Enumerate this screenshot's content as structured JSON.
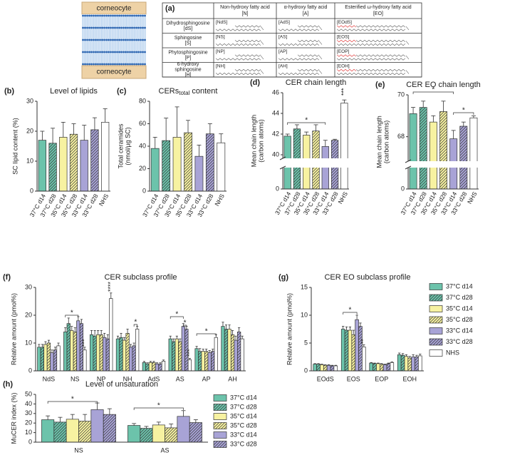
{
  "diagram": {
    "label": "(a)",
    "corneocyte": [
      "corneocyte",
      "corneocyte"
    ],
    "columns": [
      [
        "Non-hydroxy fatty acid",
        "[N]"
      ],
      [
        "α-hydroxy fatty acid",
        "[A]"
      ],
      [
        "Esterified ω-hydroxy fatty acid",
        "[EO]"
      ]
    ],
    "rows": [
      {
        "name": [
          "Dihydrosphingosine",
          "[dS]"
        ],
        "cells": [
          "[NdS]",
          "[AdS]",
          "[EOdS]"
        ]
      },
      {
        "name": [
          "Sphingosine",
          "[S]"
        ],
        "cells": [
          "[NS]",
          "[AS]",
          "[EOS]"
        ]
      },
      {
        "name": [
          "Phytosphingosine",
          "[P]"
        ],
        "cells": [
          "[NP]",
          "[AP]",
          "[EOP]"
        ]
      },
      {
        "name": [
          "6-hydroxy",
          "sphingosine",
          "[H]"
        ],
        "cells": [
          "[NH]",
          "[AH]",
          "[EOH]"
        ]
      }
    ]
  },
  "chart_data": [
    {
      "type": "bar",
      "panel": "(b)",
      "title": "Level of lipids",
      "ylabel": [
        "SC lipid content (%)"
      ],
      "categories": [
        "37°C d14",
        "37°C d28",
        "35°C d14",
        "35°C d28",
        "33°C d14",
        "33°C d28",
        "NHS"
      ],
      "values": [
        17,
        16,
        18,
        19,
        17,
        20.5,
        23
      ],
      "errors": [
        3,
        5,
        5,
        3.5,
        5,
        4,
        4.5
      ],
      "colors": [
        "#6cc3ab",
        "#6cc3ab",
        "#f7f2a1",
        "#f7f2a1",
        "#a8a3d6",
        "#a8a3d6",
        "#ffffff"
      ],
      "hatch": [
        false,
        true,
        false,
        true,
        false,
        true,
        false
      ],
      "ylim": [
        0,
        30
      ],
      "yticks": [
        0,
        10,
        20,
        30
      ]
    },
    {
      "type": "bar",
      "panel": "(c)",
      "title": "CERs",
      "title_sub": "total",
      "title_tail": "content",
      "ylabel": [
        "Total ceramides",
        "(nmol/µg SC)"
      ],
      "categories": [
        "37°C d14",
        "37°C d28",
        "35°C d14",
        "35°C d28",
        "33°C d14",
        "33°C d28",
        "NHS"
      ],
      "values": [
        38,
        45,
        48,
        52,
        31,
        51,
        43
      ],
      "errors": [
        10,
        20,
        27,
        11,
        10,
        9,
        8
      ],
      "colors": [
        "#6cc3ab",
        "#6cc3ab",
        "#f7f2a1",
        "#f7f2a1",
        "#a8a3d6",
        "#a8a3d6",
        "#ffffff"
      ],
      "hatch": [
        false,
        true,
        false,
        true,
        false,
        true,
        false
      ],
      "ylim": [
        0,
        80
      ],
      "yticks": [
        0,
        20,
        40,
        60,
        80
      ]
    },
    {
      "type": "bar",
      "panel": "(d)",
      "title": "CER chain length",
      "ylabel": [
        "Mean chain length",
        "(carbon atoms)"
      ],
      "categories": [
        "37°C d14",
        "37°C d28",
        "35°C d14",
        "35°C d28",
        "33°C d14",
        "33°C d28",
        "NHS"
      ],
      "values": [
        41.8,
        42.5,
        41.9,
        42.3,
        40.8,
        41.4,
        45
      ],
      "errors": [
        0.2,
        0.4,
        0.3,
        0.6,
        0.6,
        0.1,
        0.3
      ],
      "colors": [
        "#6cc3ab",
        "#6cc3ab",
        "#f7f2a1",
        "#f7f2a1",
        "#a8a3d6",
        "#a8a3d6",
        "#ffffff"
      ],
      "hatch": [
        false,
        true,
        false,
        true,
        false,
        true,
        false
      ],
      "ylim": [
        40,
        46
      ],
      "yticks": [
        40,
        42,
        44,
        46
      ],
      "yticks_lower": [
        0
      ],
      "annotations": [
        "*",
        "***"
      ]
    },
    {
      "type": "bar",
      "panel": "(e)",
      "title": "CER EO chain length",
      "ylabel": [
        "Mean chain length",
        "(carbon atoms)"
      ],
      "categories": [
        "37°C d14",
        "37°C d28",
        "35°C d14",
        "35°C d28",
        "33°C d14",
        "33°C d28",
        "NHS"
      ],
      "values": [
        69.1,
        69.4,
        68.7,
        69.2,
        67.9,
        68.5,
        68.9
      ],
      "errors": [
        0.3,
        0.3,
        0.3,
        0.5,
        0.4,
        0.2,
        0.1
      ],
      "colors": [
        "#6cc3ab",
        "#6cc3ab",
        "#f7f2a1",
        "#f7f2a1",
        "#a8a3d6",
        "#a8a3d6",
        "#ffffff"
      ],
      "hatch": [
        false,
        true,
        false,
        true,
        false,
        true,
        false
      ],
      "ylim": [
        67,
        70
      ],
      "yticks": [
        68,
        70
      ],
      "yticks_lower": [
        0
      ],
      "annotations": [
        "*",
        "*"
      ]
    },
    {
      "type": "grouped-bar",
      "panel": "(f)",
      "title": "CER subclass profile",
      "ylabel": [
        "Relative amount (pmol%)"
      ],
      "categories": [
        "NdS",
        "NS",
        "NP",
        "NH",
        "AdS",
        "AS",
        "AP",
        "AH"
      ],
      "series": [
        {
          "name": "37°C d14",
          "color": "#6cc3ab",
          "hatch": false,
          "values": [
            8.5,
            14,
            13,
            11.5,
            3,
            11.5,
            8,
            16
          ],
          "errors": [
            1,
            1.5,
            1.5,
            1,
            0.4,
            1,
            0.8,
            1.5
          ]
        },
        {
          "name": "37°C d28",
          "color": "#6cc3ab",
          "hatch": true,
          "values": [
            8.5,
            17,
            12.5,
            12,
            2.5,
            10.5,
            7,
            15
          ],
          "errors": [
            1,
            2,
            2,
            1.5,
            0.4,
            1,
            1,
            1.5
          ]
        },
        {
          "name": "35°C d14",
          "color": "#f7f2a1",
          "hatch": false,
          "values": [
            9.5,
            14.5,
            13,
            11,
            3,
            11.5,
            7,
            15
          ],
          "errors": [
            1,
            1.5,
            1.5,
            1,
            0.4,
            1,
            0.8,
            1.5
          ]
        },
        {
          "name": "35°C d28",
          "color": "#f7f2a1",
          "hatch": true,
          "values": [
            10,
            14,
            13,
            13.5,
            3,
            10.5,
            7,
            13
          ],
          "errors": [
            1,
            1.5,
            1.5,
            1.5,
            0.4,
            1,
            0.8,
            1.5
          ]
        },
        {
          "name": "33°C d14",
          "color": "#a8a3d6",
          "hatch": false,
          "values": [
            6.5,
            18,
            12,
            8.5,
            2.5,
            16,
            6.5,
            11
          ],
          "errors": [
            1,
            1.5,
            1.5,
            1,
            0.4,
            1,
            0.8,
            1.5
          ]
        },
        {
          "name": "33°C d28",
          "color": "#a8a3d6",
          "hatch": true,
          "values": [
            7.5,
            17,
            11.5,
            9,
            2.5,
            15,
            7,
            14
          ],
          "errors": [
            1,
            1.5,
            1.5,
            1,
            0.4,
            1,
            0.8,
            1.5
          ]
        },
        {
          "name": "NHS",
          "color": "#ffffff",
          "hatch": false,
          "values": [
            9,
            7.5,
            26,
            15,
            3.5,
            4,
            12,
            11.5
          ],
          "errors": [
            1,
            1,
            2,
            1,
            0.4,
            0.5,
            1,
            1
          ]
        }
      ],
      "ylim": [
        0,
        30
      ],
      "yticks": [
        0,
        10,
        20,
        30
      ],
      "annotations": [
        "*",
        "***",
        "****",
        "*",
        "*",
        "*",
        "***",
        "*"
      ]
    },
    {
      "type": "grouped-bar",
      "panel": "(g)",
      "title": "CER EO subclass profile",
      "ylabel": [
        "Relative amount (pmol%)"
      ],
      "categories": [
        "EOdS",
        "EOS",
        "EOP",
        "EOH"
      ],
      "series": [
        {
          "name": "37°C d14",
          "color": "#6cc3ab",
          "hatch": false,
          "values": [
            1.2,
            7.5,
            1.4,
            2.9
          ],
          "errors": [
            0.1,
            0.5,
            0.1,
            0.3
          ]
        },
        {
          "name": "37°C d28",
          "color": "#6cc3ab",
          "hatch": true,
          "values": [
            1.2,
            7.3,
            1.3,
            2.8
          ],
          "errors": [
            0.1,
            0.6,
            0.1,
            0.3
          ]
        },
        {
          "name": "35°C d14",
          "color": "#f7f2a1",
          "hatch": false,
          "values": [
            1.1,
            7.3,
            1.3,
            2.6
          ],
          "errors": [
            0.1,
            0.6,
            0.1,
            0.3
          ]
        },
        {
          "name": "35°C d28",
          "color": "#f7f2a1",
          "hatch": true,
          "values": [
            1,
            6.5,
            1.2,
            2.3
          ],
          "errors": [
            0.1,
            0.8,
            0.1,
            0.3
          ]
        },
        {
          "name": "33°C d14",
          "color": "#a8a3d6",
          "hatch": false,
          "values": [
            1,
            9.2,
            1.1,
            2.5
          ],
          "errors": [
            0.1,
            0.8,
            0.1,
            0.4
          ]
        },
        {
          "name": "33°C d28",
          "color": "#a8a3d6",
          "hatch": true,
          "values": [
            0.9,
            8,
            1.3,
            2.5
          ],
          "errors": [
            0.1,
            0.6,
            0.1,
            0.3
          ]
        },
        {
          "name": "NHS",
          "color": "#ffffff",
          "hatch": false,
          "values": [
            0.9,
            4.3,
            1.5,
            2.7
          ],
          "errors": [
            0.1,
            0.4,
            0.1,
            0.3
          ]
        }
      ],
      "ylim": [
        0,
        15
      ],
      "yticks": [
        0,
        5,
        10,
        15
      ],
      "legend": true,
      "annotations": [
        "*",
        "**"
      ]
    },
    {
      "type": "grouped-bar",
      "panel": "(h)",
      "title": "Level of unsaturation",
      "ylabel": [
        "MuCER index (%)"
      ],
      "categories": [
        "NS",
        "AS"
      ],
      "series": [
        {
          "name": "37°C d14",
          "color": "#6cc3ab",
          "hatch": false,
          "values": [
            23.5,
            17.5
          ],
          "errors": [
            4,
            2
          ]
        },
        {
          "name": "37°C d28",
          "color": "#6cc3ab",
          "hatch": true,
          "values": [
            21,
            14.5
          ],
          "errors": [
            5,
            2
          ]
        },
        {
          "name": "35°C d14",
          "color": "#f7f2a1",
          "hatch": false,
          "values": [
            24,
            18
          ],
          "errors": [
            5,
            3
          ]
        },
        {
          "name": "35°C d28",
          "color": "#f7f2a1",
          "hatch": true,
          "values": [
            22,
            15
          ],
          "errors": [
            7,
            4
          ]
        },
        {
          "name": "33°C d14",
          "color": "#a8a3d6",
          "hatch": false,
          "values": [
            34,
            27
          ],
          "errors": [
            7,
            6
          ]
        },
        {
          "name": "33°C d28",
          "color": "#a8a3d6",
          "hatch": true,
          "values": [
            29,
            20.5
          ],
          "errors": [
            6,
            3
          ]
        }
      ],
      "ylim": [
        0,
        50
      ],
      "yticks": [
        0,
        10,
        20,
        30,
        40,
        50
      ],
      "legend": true,
      "annotations": [
        "*",
        "*"
      ]
    }
  ]
}
